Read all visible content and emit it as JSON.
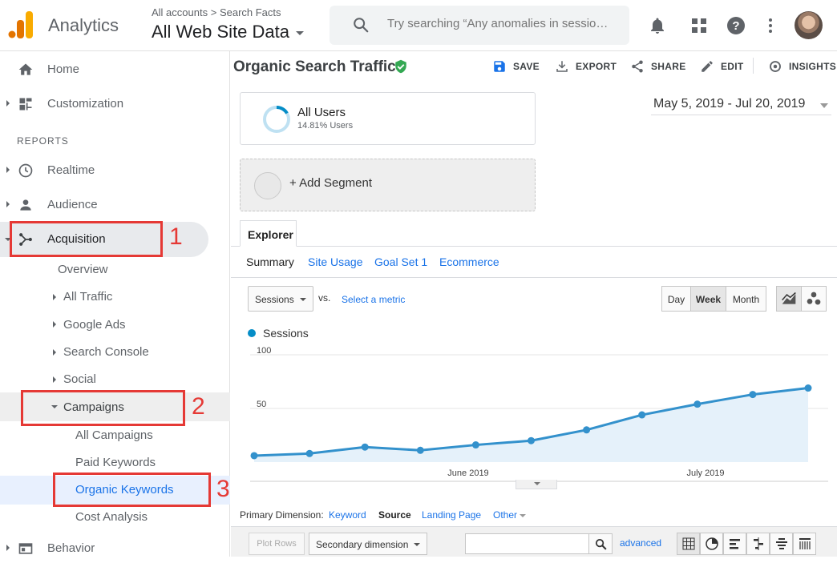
{
  "header": {
    "app_name": "Analytics",
    "breadcrumb_root": "All accounts",
    "breadcrumb_sep": ">",
    "breadcrumb_property": "Search Facts",
    "view_name": "All Web Site Data",
    "search_placeholder": "Try searching “Any anomalies in sessio…",
    "icons": [
      "bell-icon",
      "apps-grid-icon",
      "help-icon",
      "more-vert-icon",
      "avatar"
    ]
  },
  "sidebar": {
    "home": "Home",
    "customization": "Customization",
    "reports_header": "REPORTS",
    "realtime": "Realtime",
    "audience": "Audience",
    "acquisition": "Acquisition",
    "overview": "Overview",
    "all_traffic": "All Traffic",
    "google_ads": "Google Ads",
    "search_console": "Search Console",
    "social": "Social",
    "campaigns": "Campaigns",
    "all_campaigns": "All Campaigns",
    "paid_keywords": "Paid Keywords",
    "organic_keywords": "Organic Keywords",
    "cost_analysis": "Cost Analysis",
    "behavior": "Behavior"
  },
  "annotations": [
    "1",
    "2",
    "3"
  ],
  "report": {
    "title": "Organic Search Traffic",
    "toolbar": {
      "save": "SAVE",
      "export": "EXPORT",
      "share": "SHARE",
      "edit": "EDIT",
      "insights": "INSIGHTS"
    },
    "segment": {
      "name": "All Users",
      "share": "14.81% Users",
      "add": "+ Add Segment"
    },
    "date_range": "May 5, 2019 - Jul 20, 2019",
    "tab": "Explorer",
    "subtabs": [
      "Summary",
      "Site Usage",
      "Goal Set 1",
      "Ecommerce"
    ],
    "metric": "Sessions",
    "vs": "vs.",
    "select_metric": "Select a metric",
    "granularity": [
      "Day",
      "Week",
      "Month"
    ],
    "granularity_selected": "Week",
    "legend": "Sessions",
    "primary_dimension_label": "Primary Dimension:",
    "primary_dimensions": [
      "Keyword",
      "Source",
      "Landing Page",
      "Other"
    ],
    "primary_dimension_selected": "Source",
    "plot_rows": "Plot Rows",
    "secondary_dimension": "Secondary dimension",
    "advanced": "advanced"
  },
  "colors": {
    "accent": "#1a73e8",
    "series": "#3391cc",
    "annotation": "#e53935",
    "verified": "#34a853"
  },
  "chart_data": {
    "type": "area",
    "series": [
      {
        "name": "Sessions",
        "values": [
          6,
          8,
          14,
          11,
          16,
          20,
          30,
          44,
          54,
          63,
          69
        ]
      }
    ],
    "x_labels": [
      "June 2019",
      "July 2019"
    ],
    "y_ticks": [
      "100",
      "50"
    ],
    "ylim": [
      0,
      100
    ],
    "grid": true,
    "legend_position": "top-left"
  }
}
